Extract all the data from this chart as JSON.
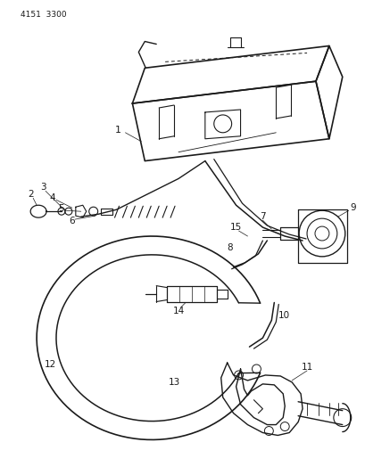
{
  "background_color": "#ffffff",
  "diagram_id": "4151 3300",
  "line_color": "#1a1a1a",
  "fig_width": 4.1,
  "fig_height": 5.33,
  "dpi": 100
}
